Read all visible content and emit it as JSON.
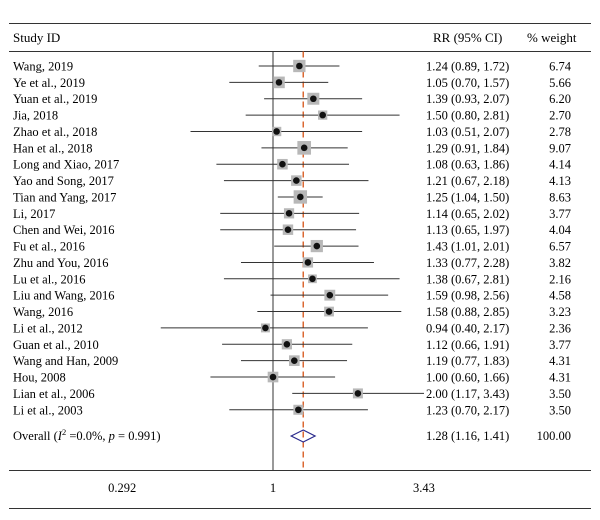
{
  "chart_data": {
    "type": "forest",
    "headers": {
      "study": "Study ID",
      "rr": "RR (95% CI)",
      "weight": "% weight"
    },
    "scale": "log",
    "ticks": [
      0.292,
      1,
      3.43
    ],
    "tick_labels": [
      "0.292",
      "1",
      "3.43"
    ],
    "reference_line": 1,
    "pooled_line": 1.28,
    "studies": [
      {
        "name": "Wang, 2019",
        "rr": 1.24,
        "low": 0.89,
        "high": 1.72,
        "rr_text": "1.24 (0.89, 1.72)",
        "weight": 6.74,
        "weight_text": "6.74"
      },
      {
        "name": "Ye et al., 2019",
        "rr": 1.05,
        "low": 0.7,
        "high": 1.57,
        "rr_text": "1.05 (0.70, 1.57)",
        "weight": 5.66,
        "weight_text": "5.66"
      },
      {
        "name": "Yuan et al., 2019",
        "rr": 1.39,
        "low": 0.93,
        "high": 2.07,
        "rr_text": "1.39 (0.93, 2.07)",
        "weight": 6.2,
        "weight_text": "6.20"
      },
      {
        "name": "Jia, 2018",
        "rr": 1.5,
        "low": 0.8,
        "high": 2.81,
        "rr_text": "1.50 (0.80, 2.81)",
        "weight": 2.7,
        "weight_text": "2.70"
      },
      {
        "name": "Zhao et al., 2018",
        "rr": 1.03,
        "low": 0.51,
        "high": 2.07,
        "rr_text": "1.03 (0.51, 2.07)",
        "weight": 2.78,
        "weight_text": "2.78"
      },
      {
        "name": "Han et al., 2018",
        "rr": 1.29,
        "low": 0.91,
        "high": 1.84,
        "rr_text": "1.29 (0.91, 1.84)",
        "weight": 9.07,
        "weight_text": "9.07"
      },
      {
        "name": "Long and Xiao, 2017",
        "rr": 1.08,
        "low": 0.63,
        "high": 1.86,
        "rr_text": "1.08 (0.63, 1.86)",
        "weight": 4.14,
        "weight_text": "4.14"
      },
      {
        "name": "Yao and Song, 2017",
        "rr": 1.21,
        "low": 0.67,
        "high": 2.18,
        "rr_text": "1.21 (0.67, 2.18)",
        "weight": 4.13,
        "weight_text": "4.13"
      },
      {
        "name": "Tian and Yang, 2017",
        "rr": 1.25,
        "low": 1.04,
        "high": 1.5,
        "rr_text": "1.25 (1.04, 1.50)",
        "weight": 8.63,
        "weight_text": "8.63"
      },
      {
        "name": "Li, 2017",
        "rr": 1.14,
        "low": 0.65,
        "high": 2.02,
        "rr_text": "1.14 (0.65, 2.02)",
        "weight": 3.77,
        "weight_text": "3.77"
      },
      {
        "name": "Chen and Wei, 2016",
        "rr": 1.13,
        "low": 0.65,
        "high": 1.97,
        "rr_text": "1.13 (0.65, 1.97)",
        "weight": 4.04,
        "weight_text": "4.04"
      },
      {
        "name": "Fu et al., 2016",
        "rr": 1.43,
        "low": 1.01,
        "high": 2.01,
        "rr_text": "1.43 (1.01, 2.01)",
        "weight": 6.57,
        "weight_text": "6.57"
      },
      {
        "name": "Zhu and You, 2016",
        "rr": 1.33,
        "low": 0.77,
        "high": 2.28,
        "rr_text": "1.33 (0.77, 2.28)",
        "weight": 3.82,
        "weight_text": "3.82"
      },
      {
        "name": "Lu et al., 2016",
        "rr": 1.38,
        "low": 0.67,
        "high": 2.81,
        "rr_text": "1.38 (0.67, 2.81)",
        "weight": 2.16,
        "weight_text": "2.16"
      },
      {
        "name": "Liu and Wang, 2016",
        "rr": 1.59,
        "low": 0.98,
        "high": 2.56,
        "rr_text": "1.59 (0.98, 2.56)",
        "weight": 4.58,
        "weight_text": "4.58"
      },
      {
        "name": "Wang, 2016",
        "rr": 1.58,
        "low": 0.88,
        "high": 2.85,
        "rr_text": "1.58 (0.88, 2.85)",
        "weight": 3.23,
        "weight_text": "3.23"
      },
      {
        "name": "Li et al., 2012",
        "rr": 0.94,
        "low": 0.4,
        "high": 2.17,
        "rr_text": "0.94 (0.40, 2.17)",
        "weight": 2.36,
        "weight_text": "2.36"
      },
      {
        "name": "Guan et al., 2010",
        "rr": 1.12,
        "low": 0.66,
        "high": 1.91,
        "rr_text": "1.12 (0.66, 1.91)",
        "weight": 3.77,
        "weight_text": "3.77"
      },
      {
        "name": "Wang and Han, 2009",
        "rr": 1.19,
        "low": 0.77,
        "high": 1.83,
        "rr_text": "1.19 (0.77, 1.83)",
        "weight": 4.31,
        "weight_text": "4.31"
      },
      {
        "name": "Hou, 2008",
        "rr": 1.0,
        "low": 0.6,
        "high": 1.66,
        "rr_text": "1.00 (0.60, 1.66)",
        "weight": 4.31,
        "weight_text": "4.31"
      },
      {
        "name": "Lian et al., 2006",
        "rr": 2.0,
        "low": 1.17,
        "high": 3.43,
        "rr_text": "2.00 (1.17, 3.43)",
        "weight": 3.5,
        "weight_text": "3.50"
      },
      {
        "name": "Li et al., 2003",
        "rr": 1.23,
        "low": 0.7,
        "high": 2.17,
        "rr_text": "1.23 (0.70, 2.17)",
        "weight": 3.5,
        "weight_text": "3.50"
      }
    ],
    "overall": {
      "label_prefix": "Overall (",
      "label_i2": "I",
      "label_sup": "2",
      "label_mid": " =0.0%, ",
      "label_p": "p",
      "label_end": " = 0.991)",
      "rr": 1.28,
      "low": 1.16,
      "high": 1.41,
      "rr_text": "1.28 (1.16, 1.41)",
      "weight_text": "100.00"
    },
    "colors": {
      "text": "#1a1a1a",
      "axis": "#333333",
      "ci_line": "#333333",
      "marker": "#111111",
      "weight_box": "#b8b8b8",
      "pooled_line": "#d95f26",
      "diamond": "#2a2a8c"
    }
  }
}
